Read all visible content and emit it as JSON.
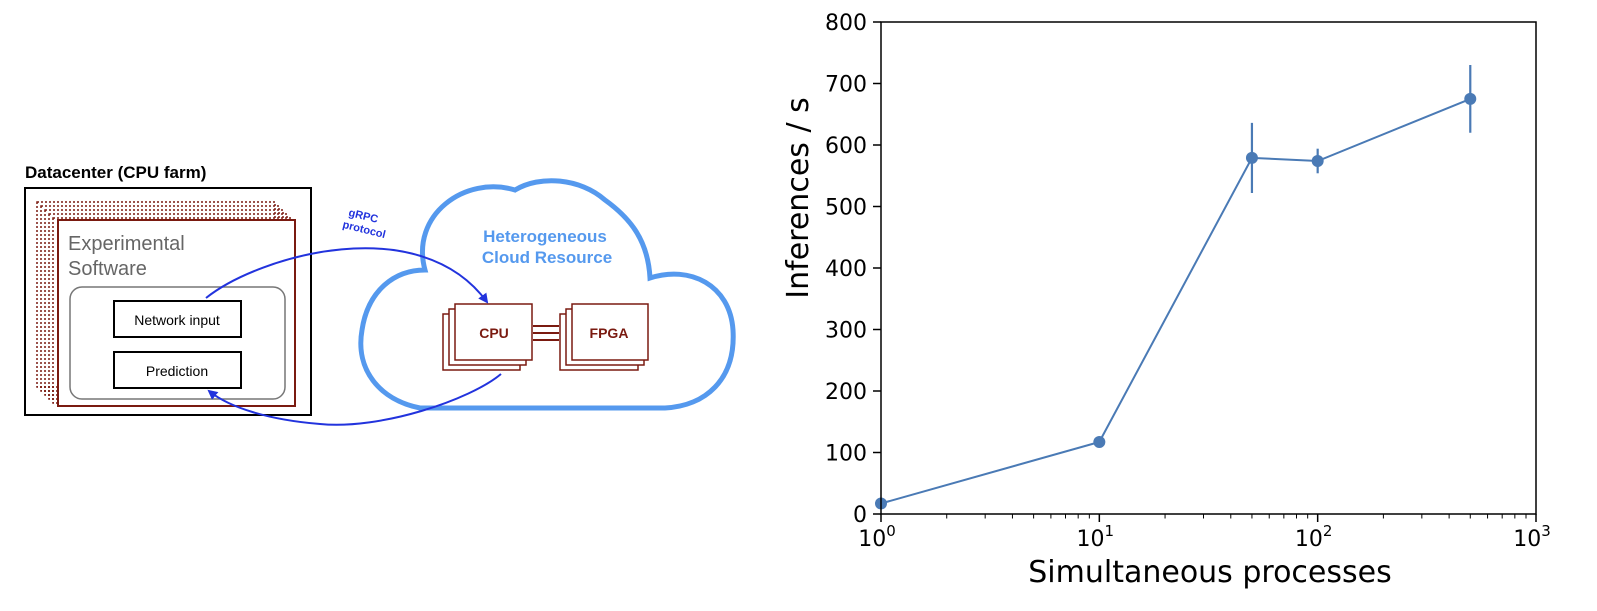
{
  "diagram": {
    "datacenter_label": "Datacenter (CPU farm)",
    "software_label_line1": "Experimental",
    "software_label_line2": "Software",
    "network_input_label": "Network input",
    "prediction_label": "Prediction",
    "grpc_line1": "gRPC",
    "grpc_line2": "protocol",
    "cloud_label_line1": "Heterogeneous",
    "cloud_label_line2": "Cloud Resource",
    "cpu_label": "CPU",
    "fpga_label": "FPGA",
    "colors": {
      "dark_red": "#7a1a10",
      "cloud_blue": "#5599ee",
      "arrow_blue": "#2233dd",
      "gray": "#666666"
    }
  },
  "chart_data": {
    "type": "line",
    "xscale": "log",
    "xlabel": "Simultaneous processes",
    "ylabel": "Inferences / s",
    "xlim": [
      1,
      1000
    ],
    "ylim": [
      0,
      800
    ],
    "x_ticks": [
      {
        "base": "10",
        "exp": "0"
      },
      {
        "base": "10",
        "exp": "1"
      },
      {
        "base": "10",
        "exp": "2"
      },
      {
        "base": "10",
        "exp": "3"
      }
    ],
    "y_ticks": [
      "0",
      "100",
      "200",
      "300",
      "400",
      "500",
      "600",
      "700",
      "800"
    ],
    "series": [
      {
        "color": "#4a7ab5",
        "x": [
          1,
          10,
          50,
          100,
          500
        ],
        "y": [
          17,
          117,
          579,
          574,
          675
        ],
        "yerr": [
          3,
          5,
          57,
          20,
          55
        ]
      }
    ],
    "grid": false
  }
}
